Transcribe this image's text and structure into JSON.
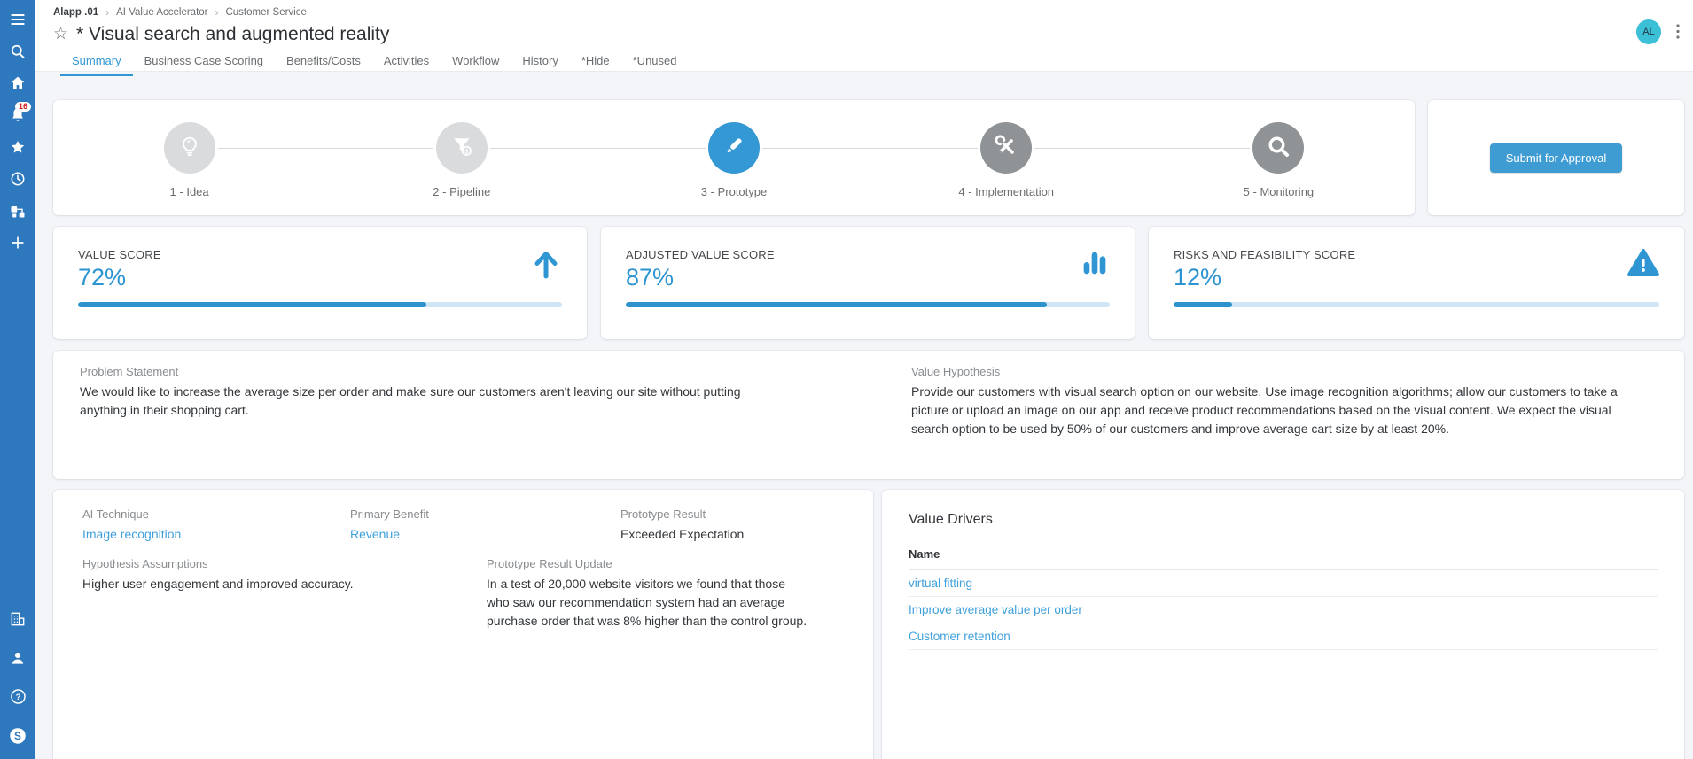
{
  "colors": {
    "sidebar": "#2e78bd",
    "accent_blue": "#2f96d3",
    "link_blue": "#3fa0dc",
    "bar_fill": "#2e93cc",
    "bar_track": "#cfe5f5",
    "avatar_teal": "#3cc0d8",
    "step_done_gray": "#d9dbdd",
    "step_todo_gray": "#8f9396",
    "background": "#f3f5f9"
  },
  "sidebar": {
    "notifications_badge": "16",
    "top_icons": [
      {
        "name": "menu-icon"
      },
      {
        "name": "search-icon"
      },
      {
        "name": "home-icon"
      },
      {
        "name": "bell-icon",
        "badge": "16"
      },
      {
        "name": "star-icon"
      },
      {
        "name": "clock-icon"
      },
      {
        "name": "hierarchy-icon"
      },
      {
        "name": "plus-icon"
      }
    ],
    "bottom_icons": [
      {
        "name": "building-icon"
      },
      {
        "name": "user-icon"
      },
      {
        "name": "help-icon"
      },
      {
        "name": "brand-logo-icon"
      }
    ]
  },
  "header": {
    "breadcrumb": [
      "Alapp .01",
      "AI Value Accelerator",
      "Customer Service"
    ],
    "breadcrumb_separator": "›",
    "favorite_star_glyph": "☆",
    "title": "* Visual search and augmented reality",
    "avatar_initials": "AL",
    "tabs": [
      {
        "label": "Summary",
        "active": true
      },
      {
        "label": "Business Case Scoring",
        "active": false
      },
      {
        "label": "Benefits/Costs",
        "active": false
      },
      {
        "label": "Activities",
        "active": false
      },
      {
        "label": "Workflow",
        "active": false
      },
      {
        "label": "History",
        "active": false
      },
      {
        "label": "*Hide",
        "active": false
      },
      {
        "label": "*Unused",
        "active": false
      }
    ]
  },
  "stepper": {
    "steps": [
      {
        "label": "1 - Idea",
        "icon": "lightbulb-icon",
        "state": "done"
      },
      {
        "label": "2 - Pipeline",
        "icon": "funnel-dollar-icon",
        "state": "done"
      },
      {
        "label": "3 - Prototype",
        "icon": "pencil-icon",
        "state": "active"
      },
      {
        "label": "4 - Implementation",
        "icon": "tools-icon",
        "state": "todo"
      },
      {
        "label": "5 - Monitoring",
        "icon": "magnifier-icon",
        "state": "todo"
      }
    ]
  },
  "actions": {
    "submit_label": "Submit for Approval"
  },
  "scores": [
    {
      "label": "VALUE SCORE",
      "value": "72%",
      "percent": 72,
      "icon": "trend-up-icon"
    },
    {
      "label": "ADJUSTED VALUE SCORE",
      "value": "87%",
      "percent": 87,
      "icon": "bar-chart-icon"
    },
    {
      "label": "RISKS AND FEASIBILITY SCORE",
      "value": "12%",
      "percent": 12,
      "icon": "warning-icon"
    }
  ],
  "statements": {
    "problem": {
      "label": "Problem Statement",
      "text": "We would like to increase the average size per order and make sure our customers aren't leaving our site without putting anything in their shopping cart."
    },
    "hypothesis": {
      "label": "Value Hypothesis",
      "text": "Provide our customers with visual search option on our website. Use image recognition algorithms; allow our customers to take a picture or upload an image on our app and receive product recommendations based on the visual content. We expect the visual search option to be used by 50% of our customers and improve average cart size by at least 20%."
    }
  },
  "details": {
    "ai_technique": {
      "label": "AI Technique",
      "value": "Image recognition"
    },
    "primary_benefit": {
      "label": "Primary Benefit",
      "value": "Revenue"
    },
    "prototype_result": {
      "label": "Prototype Result",
      "value": "Exceeded Expectation"
    },
    "hypothesis_assumptions": {
      "label": "Hypothesis Assumptions",
      "value": "Higher user engagement and improved accuracy."
    },
    "prototype_result_update": {
      "label": "Prototype Result Update",
      "value": "In a test of 20,000 website visitors we found that those who saw our recommendation system had an average purchase order that was 8% higher than the control group."
    }
  },
  "value_drivers": {
    "title": "Value Drivers",
    "column_header": "Name",
    "rows": [
      "virtual fitting",
      "Improve average value per order",
      "Customer retention"
    ]
  }
}
